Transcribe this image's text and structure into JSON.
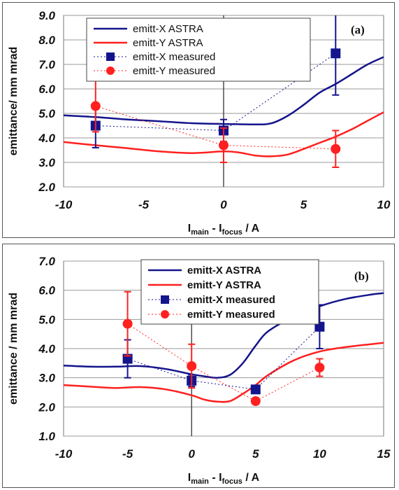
{
  "chart_data": [
    {
      "panel_label": "(a)",
      "type": "line",
      "xlabel_main": "I",
      "xlabel_sub1": "main",
      "xlabel_mid": " - I",
      "xlabel_sub2": "focus",
      "xlabel_unit": " / A",
      "ylabel": "emittance/ mm mrad",
      "xlim": [
        -10,
        10
      ],
      "ylim": [
        2.0,
        9.0
      ],
      "xticks": [
        -10,
        -5,
        0,
        5,
        10
      ],
      "xtick_labels": [
        "-10",
        "-5",
        "0",
        "5",
        "10"
      ],
      "yticks": [
        2.0,
        3.0,
        4.0,
        5.0,
        6.0,
        7.0,
        8.0,
        9.0
      ],
      "ytick_labels": [
        "2.0",
        "3.0",
        "4.0",
        "5.0",
        "6.0",
        "7.0",
        "8.0",
        "9.0"
      ],
      "grid": "horizontal",
      "legend_position": "top",
      "legend_bold": false,
      "series": [
        {
          "name": "emitt-X ASTRA",
          "kind": "line",
          "color": "#14148c",
          "x": [
            -10,
            -8,
            -6,
            -4,
            -2,
            0,
            2,
            3,
            4,
            5,
            6,
            7,
            8,
            9,
            10
          ],
          "y": [
            4.92,
            4.85,
            4.75,
            4.68,
            4.6,
            4.57,
            4.55,
            4.6,
            4.9,
            5.35,
            5.85,
            6.2,
            6.6,
            7.0,
            7.3
          ]
        },
        {
          "name": "emitt-Y ASTRA",
          "kind": "line",
          "color": "#ff2020",
          "x": [
            -10,
            -8,
            -6,
            -4,
            -2,
            0,
            1,
            2,
            3,
            4,
            5,
            6,
            7,
            8,
            9,
            10
          ],
          "y": [
            3.83,
            3.7,
            3.58,
            3.45,
            3.38,
            3.45,
            3.4,
            3.28,
            3.25,
            3.32,
            3.55,
            3.8,
            4.05,
            4.35,
            4.7,
            5.05
          ]
        },
        {
          "name": "emitt-X measured",
          "kind": "marker",
          "marker": "square",
          "color": "#14148c",
          "x": [
            -8,
            0,
            7
          ],
          "y": [
            4.5,
            4.3,
            7.45
          ],
          "err": [
            0.9,
            0.45,
            1.7
          ]
        },
        {
          "name": "emitt-Y measured",
          "kind": "marker",
          "marker": "circle",
          "color": "#ff2020",
          "x": [
            -8,
            0,
            7
          ],
          "y": [
            5.3,
            3.7,
            3.55
          ],
          "err": [
            1.05,
            0.7,
            0.75
          ]
        }
      ]
    },
    {
      "panel_label": "(b)",
      "type": "line",
      "xlabel_main": "I",
      "xlabel_sub1": "main",
      "xlabel_mid": " - I",
      "xlabel_sub2": "focus",
      "xlabel_unit": " / A",
      "ylabel": "emittance / mm mrad",
      "xlim": [
        -10,
        15
      ],
      "ylim": [
        1.0,
        7.0
      ],
      "xticks": [
        -10,
        -5,
        0,
        5,
        10,
        15
      ],
      "xtick_labels": [
        "-10",
        "-5",
        "0",
        "5",
        "10",
        "15"
      ],
      "yticks": [
        1.0,
        2.0,
        3.0,
        4.0,
        5.0,
        6.0,
        7.0
      ],
      "ytick_labels": [
        "1.0",
        "2.0",
        "3.0",
        "4.0",
        "5.0",
        "6.0",
        "7.0"
      ],
      "grid": "horizontal",
      "legend_position": "top",
      "legend_bold": true,
      "series": [
        {
          "name": "emitt-X ASTRA",
          "kind": "line",
          "color": "#14148c",
          "x": [
            -10,
            -8,
            -6,
            -4,
            -2,
            0,
            1,
            2,
            3,
            4,
            5,
            6,
            8,
            10,
            12,
            14,
            15
          ],
          "y": [
            3.42,
            3.38,
            3.38,
            3.4,
            3.3,
            3.12,
            3.05,
            3.0,
            3.1,
            3.5,
            4.1,
            4.6,
            5.1,
            5.45,
            5.7,
            5.85,
            5.9
          ]
        },
        {
          "name": "emitt-Y ASTRA",
          "kind": "line",
          "color": "#ff2020",
          "x": [
            -10,
            -8,
            -6,
            -4,
            -2,
            0,
            1,
            2,
            3,
            4,
            5,
            6,
            8,
            10,
            12,
            14,
            15
          ],
          "y": [
            2.75,
            2.7,
            2.65,
            2.68,
            2.6,
            2.4,
            2.25,
            2.18,
            2.2,
            2.45,
            2.75,
            3.1,
            3.6,
            3.9,
            4.05,
            4.15,
            4.2
          ]
        },
        {
          "name": "emitt-X measured",
          "kind": "marker",
          "marker": "square",
          "color": "#14148c",
          "x": [
            -5,
            0,
            5,
            10
          ],
          "y": [
            3.65,
            2.9,
            2.6,
            4.75
          ],
          "err": [
            0.65,
            0.2,
            0.1,
            0.75
          ]
        },
        {
          "name": "emitt-Y measured",
          "kind": "marker",
          "marker": "circle",
          "color": "#ff2020",
          "x": [
            -5,
            0,
            5,
            10
          ],
          "y": [
            4.85,
            3.4,
            2.2,
            3.35
          ],
          "err": [
            1.1,
            0.75,
            0.1,
            0.3
          ]
        }
      ]
    }
  ]
}
